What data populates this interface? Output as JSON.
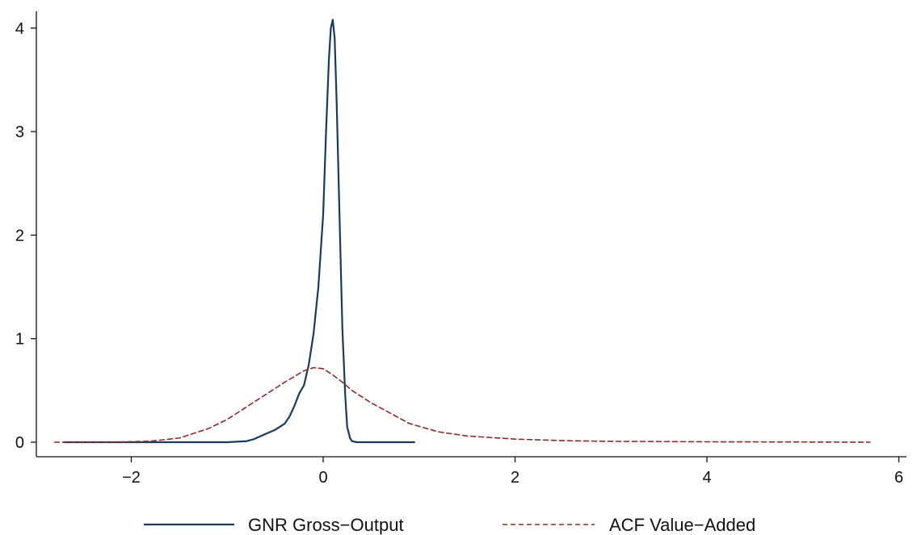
{
  "chart_data": {
    "type": "line",
    "title": "",
    "xlabel": "",
    "ylabel": "",
    "xlim": [
      -2.8,
      6
    ],
    "ylim": [
      0,
      4.2
    ],
    "xticks": [
      -2,
      0,
      2,
      4,
      6
    ],
    "yticks": [
      0,
      1,
      2,
      3,
      4
    ],
    "xtick_labels": [
      "−2",
      "0",
      "2",
      "4",
      "6"
    ],
    "ytick_labels": [
      "0",
      "1",
      "2",
      "3",
      "4"
    ],
    "grid": false,
    "legend_position": "bottom",
    "series": [
      {
        "name": "GNR Gross−Output",
        "color": "#1a3a5c",
        "line_style": "solid",
        "x": [
          -2.7,
          -2.0,
          -1.5,
          -1.0,
          -0.8,
          -0.72,
          -0.6,
          -0.5,
          -0.4,
          -0.35,
          -0.3,
          -0.25,
          -0.2,
          -0.15,
          -0.1,
          -0.05,
          0.0,
          0.03,
          0.06,
          0.08,
          0.1,
          0.12,
          0.14,
          0.17,
          0.2,
          0.23,
          0.25,
          0.28,
          0.3,
          0.35,
          0.5,
          0.95
        ],
        "y": [
          0.0,
          0.0,
          0.0,
          0.0,
          0.01,
          0.03,
          0.08,
          0.12,
          0.18,
          0.25,
          0.35,
          0.47,
          0.55,
          0.75,
          1.05,
          1.5,
          2.2,
          3.0,
          3.7,
          4.0,
          4.08,
          3.9,
          3.3,
          2.2,
          1.1,
          0.45,
          0.15,
          0.04,
          0.01,
          0.0,
          0.0,
          0.0
        ]
      },
      {
        "name": "ACF Value−Added",
        "color": "#8b2c2c",
        "line_style": "dashed",
        "x": [
          -2.8,
          -2.2,
          -1.8,
          -1.5,
          -1.2,
          -1.0,
          -0.8,
          -0.6,
          -0.4,
          -0.2,
          -0.1,
          0.0,
          0.1,
          0.2,
          0.3,
          0.5,
          0.7,
          0.9,
          1.2,
          1.5,
          2.0,
          2.5,
          3.0,
          4.0,
          5.0,
          5.7
        ],
        "y": [
          0.0,
          0.0,
          0.01,
          0.04,
          0.13,
          0.22,
          0.34,
          0.46,
          0.58,
          0.69,
          0.72,
          0.71,
          0.65,
          0.58,
          0.5,
          0.38,
          0.28,
          0.18,
          0.1,
          0.06,
          0.03,
          0.015,
          0.008,
          0.004,
          0.002,
          0.0
        ]
      }
    ]
  }
}
